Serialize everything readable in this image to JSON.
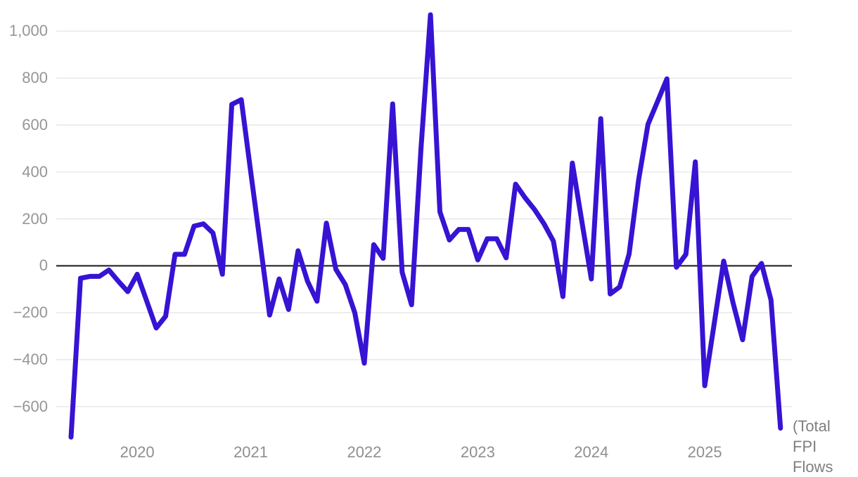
{
  "chart_data": {
    "type": "line",
    "title": "",
    "legend_position": "bottom-right-cutoff",
    "grid": "horizontal-only",
    "background_color": "#ffffff",
    "line_color": "#3713d3",
    "axis_label_color": "#969696",
    "gridline_color": "#e9e9e9",
    "zero_line_color": "#2e2e2e",
    "x_tick_labels": [
      "2020",
      "2021",
      "2022",
      "2023",
      "2024",
      "2025"
    ],
    "y_ticks": [
      1000,
      800,
      600,
      400,
      200,
      0,
      -200,
      -400,
      -600
    ],
    "y_tick_labels": [
      "1,000",
      "800",
      "600",
      "400",
      "200",
      "0",
      "−200",
      "−400",
      "−600"
    ],
    "ylim": [
      -800,
      1100
    ],
    "series": [
      {
        "name": "(Total FPI Flows",
        "start": "2019-06",
        "end": "2025-09",
        "frequency": "monthly",
        "values": [
          -730,
          -53,
          -45,
          -45,
          -18,
          -66,
          -110,
          -36,
          -150,
          -265,
          -215,
          49,
          49,
          169,
          179,
          140,
          -36,
          688,
          708,
          400,
          95,
          -210,
          -56,
          -186,
          64,
          -66,
          -151,
          182,
          -15,
          -80,
          -200,
          -415,
          90,
          32,
          690,
          -27,
          -166,
          500,
          1070,
          230,
          110,
          155,
          155,
          25,
          115,
          115,
          34,
          348,
          290,
          240,
          179,
          105,
          -131,
          438,
          190,
          -56,
          627,
          -120,
          -90,
          50,
          365,
          603,
          700,
          797,
          -6,
          49,
          443,
          -511,
          -245,
          20,
          -160,
          -315,
          -45,
          10,
          -146,
          -692
        ]
      }
    ]
  },
  "annotation": {
    "series_label": "(Total FPI Flows"
  }
}
